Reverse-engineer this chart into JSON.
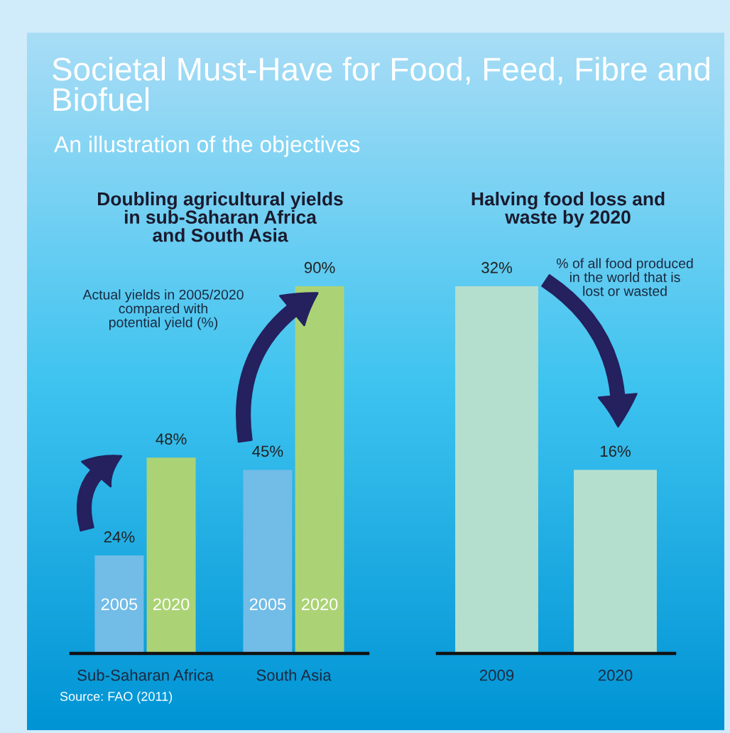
{
  "chart_data": [
    {
      "type": "other",
      "title": "Societal Must-Have for Food, Feed, Fibre and Biofuel",
      "subtitle": "An illustration of the objectives"
    },
    {
      "type": "bar",
      "title": "Doubling agricultural yields\nin sub-Saharan Africa\nand South Asia",
      "categories": [
        "Sub-Saharan Africa",
        "South Asia"
      ],
      "series": [
        {
          "name": "2005",
          "color": "#72bce8",
          "values": [
            24,
            45
          ],
          "value_labels": [
            "24%",
            "45%"
          ]
        },
        {
          "name": "2020",
          "color": "#abd375",
          "values": [
            48,
            90
          ],
          "value_labels": [
            "48%",
            "90%"
          ]
        }
      ],
      "tick_labels": "x",
      "grid": false,
      "legend": false,
      "annotations": [
        "Actual yields in 2005/2020\ncompared with\npotential yield (%)",
        "Source: FAO (2011)"
      ]
    },
    {
      "type": "bar",
      "title": "Halving food loss and\nwaste by 2020",
      "categories": [
        "2009",
        "2020"
      ],
      "series": [
        {
          "color": "#b4dfcf",
          "values": [
            32,
            16
          ],
          "value_labels": [
            "32%",
            "16%"
          ]
        }
      ],
      "tick_labels": "x",
      "grid": false,
      "legend": false,
      "annotations": [
        "% of all food produced\nin the world that is\nlost or wasted"
      ]
    }
  ]
}
